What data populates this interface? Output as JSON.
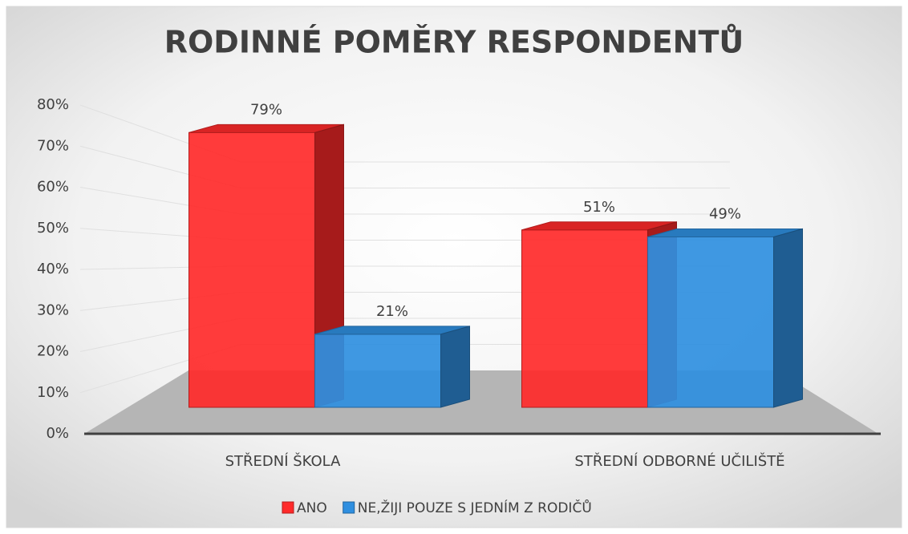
{
  "chart_data": {
    "type": "bar3d",
    "title": "RODINNÉ POMĚRY RESPONDENTŮ",
    "categories": [
      "STŘEDNÍ ŠKOLA",
      "STŘEDNÍ ODBORNÉ UČILIŠTĚ"
    ],
    "series": [
      {
        "name": "ANO",
        "color": "#ff2a2a",
        "values": [
          79,
          51
        ],
        "value_labels": [
          "79%",
          "51%"
        ]
      },
      {
        "name": "NE,ŽIJI POUZE S JEDNÍM Z RODIČŮ",
        "color": "#2f8fe0",
        "values": [
          21,
          49
        ],
        "value_labels": [
          "21%",
          "49%"
        ]
      }
    ],
    "ylim": [
      0,
      80
    ],
    "yticks": [
      {
        "value": 0,
        "label": "0%"
      },
      {
        "value": 10,
        "label": "10%"
      },
      {
        "value": 20,
        "label": "20%"
      },
      {
        "value": 30,
        "label": "30%"
      },
      {
        "value": 40,
        "label": "40%"
      },
      {
        "value": 50,
        "label": "50%"
      },
      {
        "value": 60,
        "label": "60%"
      },
      {
        "value": 70,
        "label": "70%"
      },
      {
        "value": 80,
        "label": "80%"
      }
    ],
    "grid": true,
    "legend": "bottom"
  }
}
